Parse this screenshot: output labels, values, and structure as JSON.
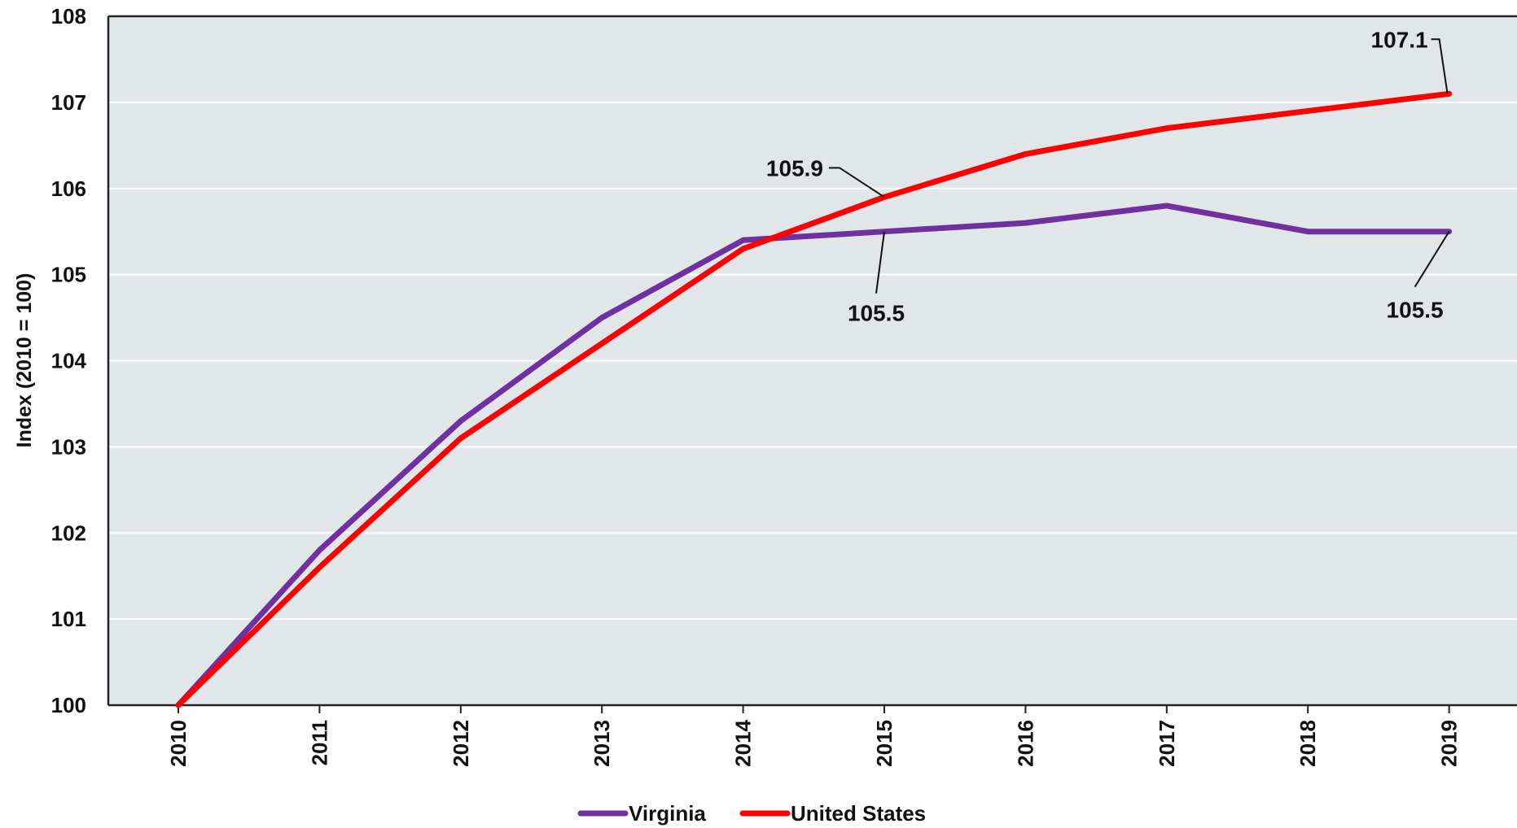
{
  "chart_data": {
    "type": "line",
    "title": "",
    "xlabel": "",
    "ylabel": "Index (2010 = 100)",
    "x": [
      "2010",
      "2011",
      "2012",
      "2013",
      "2014",
      "2015",
      "2016",
      "2017",
      "2018",
      "2019"
    ],
    "ylim": [
      100,
      108
    ],
    "yticks": [
      "100",
      "101",
      "102",
      "103",
      "104",
      "105",
      "106",
      "107",
      "108"
    ],
    "grid": true,
    "series": [
      {
        "name": "Virginia",
        "color": "#7030a0",
        "values": [
          100.0,
          101.8,
          103.3,
          104.5,
          105.4,
          105.5,
          105.6,
          105.8,
          105.5,
          105.5
        ]
      },
      {
        "name": "United States",
        "color": "#ff0000",
        "values": [
          100.0,
          101.6,
          103.1,
          104.2,
          105.3,
          105.9,
          106.4,
          106.7,
          106.9,
          107.1
        ]
      }
    ],
    "annotations": [
      {
        "text": "107.1",
        "series": 1,
        "x": "2019"
      },
      {
        "text": "105.9",
        "series": 1,
        "x": "2015"
      },
      {
        "text": "105.5",
        "series": 0,
        "x": "2015"
      },
      {
        "text": "105.5",
        "series": 0,
        "x": "2019"
      }
    ],
    "legend": "bottom-center",
    "plot_background": "#e1e7e9",
    "gridline_color": "#ffffff"
  }
}
